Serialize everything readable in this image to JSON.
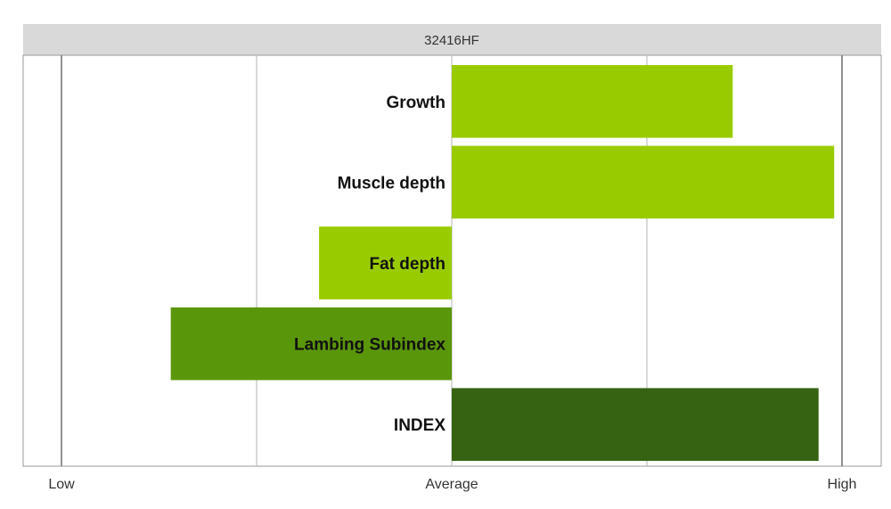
{
  "chart_data": {
    "type": "bar",
    "orientation": "horizontal",
    "title": "32416HF",
    "categories": [
      "Growth",
      "Muscle depth",
      "Fat depth",
      "Lambing Subindex",
      "INDEX"
    ],
    "values": [
      0.72,
      0.98,
      -0.34,
      -0.72,
      0.94
    ],
    "xlim": [
      -1,
      1
    ],
    "tick_labels": [
      "Low",
      "Average",
      "High"
    ],
    "grid": true,
    "colors": {
      "Growth": "#99cc00",
      "Muscle depth": "#99cc00",
      "Fat depth": "#99cc00",
      "Lambing Subindex": "#5a960a",
      "INDEX": "#356312"
    }
  }
}
